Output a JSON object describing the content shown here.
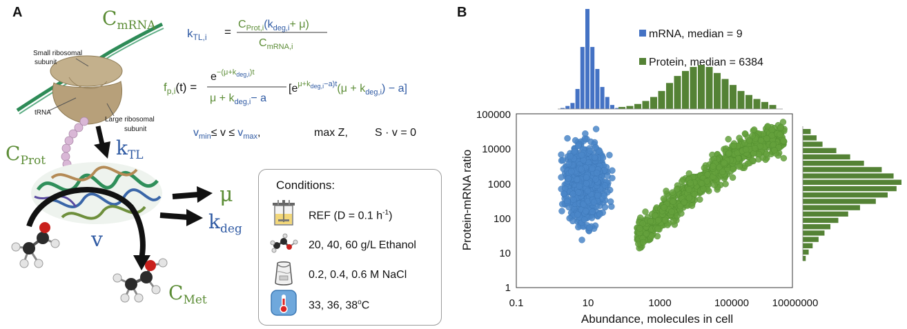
{
  "panel_a": {
    "label": "A",
    "c_mrna": "C",
    "c_mrna_sub": "mRNA",
    "small_subunit": [
      "Small ribosomal",
      "subunit"
    ],
    "large_subunit": [
      "Large ribosomal",
      "subunit"
    ],
    "trna": "tRNA",
    "c_prot": "C",
    "c_prot_sub": "Prot",
    "k_tl": "k",
    "k_tl_sub": "TL",
    "mu": "μ",
    "k_deg": "k",
    "k_deg_sub": "deg",
    "v": "v",
    "c_met": "C",
    "c_met_sub": "Met"
  },
  "equations": {
    "eq1_lhs": "k",
    "eq1_lhs_sub": "TL,i",
    "eq1_num_c": "C",
    "eq1_num_c_sub": "Prot,i",
    "eq1_num_k": "(k",
    "eq1_num_k_sub": "deg,i",
    "eq1_num_mu": "+ μ)",
    "eq1_den": "C",
    "eq1_den_sub": "mRNA,i",
    "eq2_lhs": "f",
    "eq2_lhs_sub": "p,i",
    "eq2_lhs_arg": "(t) =",
    "eq2_num": "e",
    "eq2_num_exp": "−(μ+k",
    "eq2_num_exp_sub": "deg,i",
    "eq2_num_exp_end": ")t",
    "eq2_den_mu": "μ + k",
    "eq2_den_sub": "deg,i",
    "eq2_den_a": "− a",
    "eq2_bracket_e": "[e",
    "eq2_bracket_exp": "μ+k",
    "eq2_bracket_exp_sub": "deg,i",
    "eq2_bracket_exp_end": "−a)t",
    "eq2_paren": "(μ + k",
    "eq2_paren_sub": "deg,i",
    "eq2_paren_end": ") − a]",
    "eq3_v1": "v",
    "eq3_v1_sub": "min",
    "eq3_mid": "≤ v ≤",
    "eq3_v2": "v",
    "eq3_v2_sub": "max",
    "eq3_comma": ",",
    "eq3_obj": "max Z,",
    "eq3_con": "S · v = 0"
  },
  "conditions": {
    "title": "Conditions:",
    "items": [
      {
        "icon": "bioreactor-icon",
        "text": "REF (D = 0.1 h",
        "sup": "-1",
        "end": ")"
      },
      {
        "icon": "ethanol-molecule-icon",
        "text": "20, 40, 60 g/L Ethanol"
      },
      {
        "icon": "salt-bag-icon",
        "text": "0.2, 0.4, 0.6 M NaCl"
      },
      {
        "icon": "thermometer-icon",
        "text": "33, 36, 38",
        "sup": "o",
        "end": "C"
      }
    ]
  },
  "panel_b": {
    "label": "B",
    "legend": [
      {
        "label": "mRNA, median = 9",
        "color": "#4472c4"
      },
      {
        "label": "Protein, median = 6384",
        "color": "#548235"
      }
    ],
    "ylabel": "Protein-mRNA ratio",
    "xlabel": "Abundance, molecules in cell",
    "yticks": [
      "100000",
      "10000",
      "1000",
      "100",
      "10",
      "1"
    ],
    "xticks": [
      "0.1",
      "10",
      "1000",
      "100000",
      "10000000"
    ]
  },
  "chart_data": {
    "type": "scatter",
    "x_scale": "log",
    "y_scale": "log",
    "xlim": [
      0.1,
      10000000
    ],
    "ylim": [
      1,
      100000
    ],
    "xlabel": "Abundance, molecules in cell",
    "ylabel": "Protein-mRNA ratio",
    "grid": false,
    "legend_position": "top (above plot)",
    "series": [
      {
        "name": "mRNA",
        "color": "#4a86c8",
        "cloud": {
          "x_range": [
            2,
            60
          ],
          "y_range": [
            2,
            40000
          ],
          "x_center": 10,
          "y_center": 1000
        }
      },
      {
        "name": "Protein",
        "color": "#64a03c",
        "trend": {
          "x": [
            500,
            3000,
            30000,
            300000,
            3000000
          ],
          "y": [
            40,
            200,
            1500,
            8000,
            20000
          ]
        }
      }
    ],
    "histogram_top": {
      "mRNA_heights": [
        1,
        3,
        6,
        20,
        62,
        100,
        62,
        40,
        22,
        12,
        4,
        1
      ],
      "protein_heights": [
        2,
        3,
        5,
        8,
        12,
        18,
        26,
        33,
        38,
        42,
        44,
        42,
        36,
        30,
        24,
        18,
        14,
        10,
        7,
        4
      ]
    },
    "histogram_right": {
      "protein_ratio_heights": [
        8,
        14,
        20,
        34,
        48,
        62,
        80,
        92,
        100,
        95,
        86,
        74,
        58,
        46,
        36,
        28,
        22,
        16,
        10,
        6,
        3
      ]
    }
  }
}
